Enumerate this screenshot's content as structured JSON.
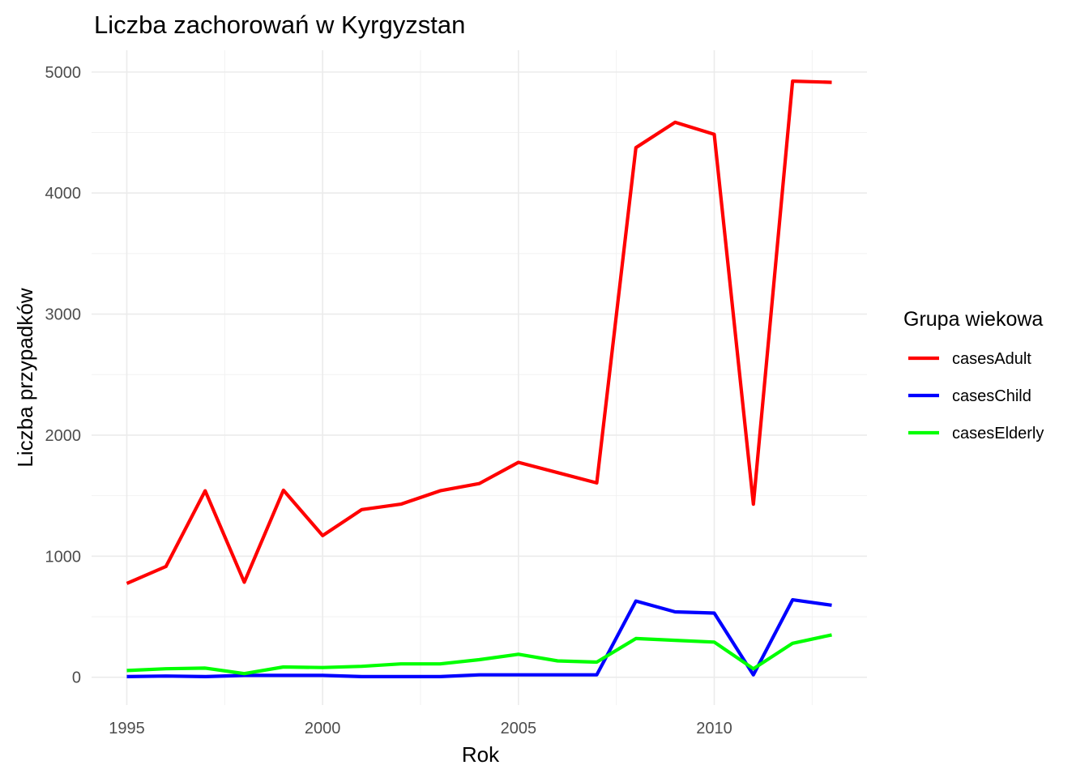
{
  "chart_data": {
    "type": "line",
    "title": "Liczba zachorowań w Kyrgyzstan",
    "xlabel": "Rok",
    "ylabel": "Liczba przypadków",
    "xlim": [
      1994.1,
      2013.9
    ],
    "ylim": [
      -230,
      5180
    ],
    "x_ticks": [
      1995,
      2000,
      2005,
      2010
    ],
    "x_tick_labels": [
      "1995",
      "2000",
      "2005",
      "2010"
    ],
    "x_minor_ticks": [
      1997.5,
      2002.5,
      2007.5,
      2012.5
    ],
    "y_ticks": [
      0,
      1000,
      2000,
      3000,
      4000,
      5000
    ],
    "y_tick_labels": [
      "0",
      "1000",
      "2000",
      "3000",
      "4000",
      "5000"
    ],
    "y_minor_ticks": [
      500,
      1500,
      2500,
      3500,
      4500
    ],
    "grid": true,
    "legend": {
      "title": "Grupa wiekowa",
      "position": "right"
    },
    "x": [
      1995,
      1996,
      1997,
      1998,
      1999,
      2000,
      2001,
      2002,
      2003,
      2004,
      2005,
      2006,
      2007,
      2008,
      2009,
      2010,
      2011,
      2012,
      2013
    ],
    "series": [
      {
        "name": "casesAdult",
        "color": "#ff0000",
        "values": [
          775,
          915,
          1540,
          785,
          1545,
          1170,
          1385,
          1430,
          1540,
          1600,
          1775,
          1690,
          1605,
          4375,
          4585,
          4485,
          1430,
          4925,
          4915
        ]
      },
      {
        "name": "casesChild",
        "color": "#0000ff",
        "values": [
          5,
          10,
          5,
          15,
          15,
          15,
          5,
          5,
          5,
          20,
          20,
          20,
          20,
          630,
          540,
          530,
          20,
          640,
          595
        ]
      },
      {
        "name": "casesElderly",
        "color": "#00ff00",
        "values": [
          55,
          70,
          75,
          30,
          85,
          80,
          90,
          110,
          110,
          145,
          190,
          135,
          125,
          320,
          305,
          290,
          70,
          280,
          350
        ]
      }
    ]
  }
}
